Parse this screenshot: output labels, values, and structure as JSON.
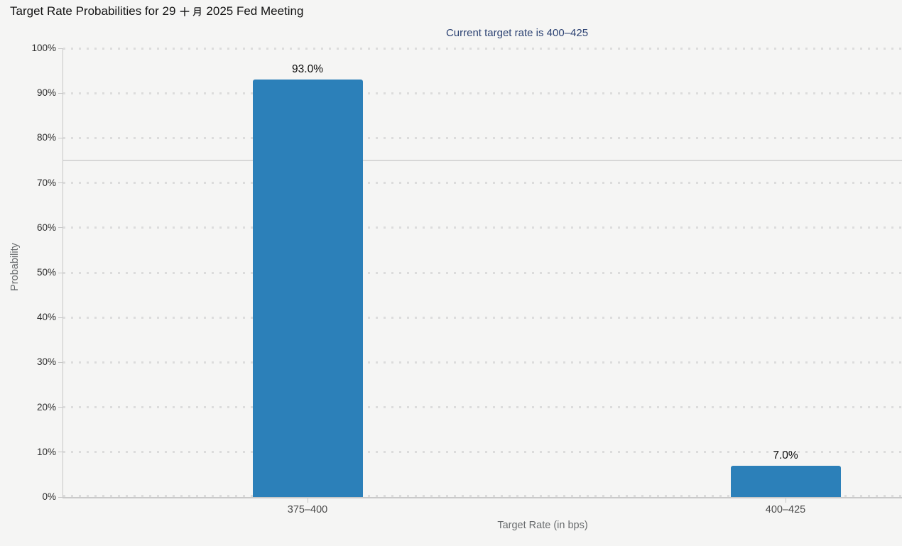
{
  "header": {
    "title": "Target Rate Probabilities for 29 十月 2025 Fed Meeting",
    "title_prefix": "Target Rate Probabilities for 29",
    "title_month_cjk": "十月",
    "title_suffix": "2025 Fed Meeting",
    "subtitle": "Current target rate is 400–425"
  },
  "chart_data": {
    "type": "bar",
    "title": "Target Rate Probabilities for 29 十月 2025 Fed Meeting",
    "subtitle": "Current target rate is 400–425",
    "xlabel": "Target Rate (in bps)",
    "ylabel": "Probability",
    "categories": [
      "375–400",
      "400–425"
    ],
    "values": [
      93.0,
      7.0
    ],
    "value_labels": [
      "93.0%",
      "7.0%"
    ],
    "ylim": [
      0,
      100
    ],
    "ytick_step": 10,
    "ytick_labels": [
      "0%",
      "10%",
      "20%",
      "30%",
      "40%",
      "50%",
      "60%",
      "70%",
      "80%",
      "90%",
      "100%"
    ],
    "grid": "horizontal-dotted",
    "reference_line_y": 75,
    "legend": null,
    "colors": {
      "bar": "#2c80b9",
      "subtitle_text": "#2d4373",
      "grid_dotted": "#dcdcdc",
      "reference_line": "#d7d7d7",
      "axis": "#c6c6c6",
      "background": "#f5f5f4"
    }
  }
}
